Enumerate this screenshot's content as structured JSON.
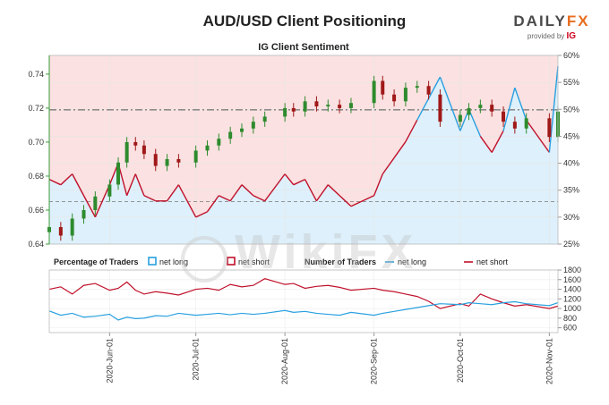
{
  "title": "AUD/USD Client Positioning",
  "logo": {
    "word_left": "DAILY",
    "word_right": "FX",
    "provided_by": "provided by",
    "provider": "IG"
  },
  "colors": {
    "candle_up": "#2e8b2e",
    "candle_down": "#a01818",
    "net_long": "#29a0e0",
    "net_short": "#c0102a",
    "long_fill": "#def0fb",
    "short_fill": "#fbe1e1",
    "price_axis": "#3a9a3a"
  },
  "chart_data": [
    {
      "type": "candlestick+line",
      "title": "IG Client Sentiment",
      "price_axis": {
        "side": "left",
        "ticks": [
          0.64,
          0.66,
          0.68,
          0.7,
          0.72,
          0.74
        ],
        "tick_labels": [
          "0.64",
          "0.66",
          "0.68",
          "0.70",
          "0.72",
          "0.74"
        ],
        "ylim": [
          0.64,
          0.751
        ]
      },
      "pct_axis": {
        "side": "right",
        "ticks": [
          25,
          30,
          35,
          40,
          45,
          50,
          55,
          60
        ],
        "tick_labels": [
          "25%",
          "30%",
          "35%",
          "40%",
          "45%",
          "50%",
          "55%",
          "60%"
        ],
        "ylim": [
          25,
          60
        ]
      },
      "reference_lines": {
        "price_dashdot": 0.719,
        "price_dashed": 0.665
      },
      "x_dates": [
        "2020-05-11",
        "2020-05-15",
        "2020-05-19",
        "2020-05-23",
        "2020-05-27",
        "2020-06-01",
        "2020-06-04",
        "2020-06-07",
        "2020-06-10",
        "2020-06-13",
        "2020-06-17",
        "2020-06-21",
        "2020-06-25",
        "2020-07-01",
        "2020-07-05",
        "2020-07-09",
        "2020-07-13",
        "2020-07-17",
        "2020-07-21",
        "2020-07-25",
        "2020-08-01",
        "2020-08-04",
        "2020-08-08",
        "2020-08-12",
        "2020-08-16",
        "2020-08-20",
        "2020-08-24",
        "2020-09-01",
        "2020-09-04",
        "2020-09-08",
        "2020-09-12",
        "2020-09-16",
        "2020-09-20",
        "2020-09-24",
        "2020-10-01",
        "2020-10-04",
        "2020-10-08",
        "2020-10-12",
        "2020-10-16",
        "2020-10-20",
        "2020-10-24",
        "2020-11-01",
        "2020-11-04"
      ],
      "price_close": [
        0.65,
        0.645,
        0.655,
        0.66,
        0.668,
        0.675,
        0.688,
        0.7,
        0.698,
        0.693,
        0.686,
        0.69,
        0.688,
        0.695,
        0.698,
        0.702,
        0.706,
        0.708,
        0.712,
        0.715,
        0.72,
        0.718,
        0.724,
        0.721,
        0.722,
        0.72,
        0.723,
        0.736,
        0.728,
        0.724,
        0.732,
        0.733,
        0.728,
        0.712,
        0.716,
        0.72,
        0.722,
        0.718,
        0.712,
        0.708,
        0.714,
        0.703,
        0.718
      ],
      "pct_net_long": [
        37,
        36,
        38,
        34,
        30,
        36,
        40,
        34,
        38,
        34,
        33,
        33,
        36,
        30,
        31,
        34,
        33,
        36,
        34,
        33,
        38,
        36,
        37,
        33,
        36,
        34,
        32,
        34,
        38,
        41,
        44,
        48,
        52,
        56,
        46,
        50,
        45,
        42,
        46,
        54,
        48,
        42,
        58
      ]
    },
    {
      "type": "line",
      "legend": {
        "pct_title": "Percentage of Traders",
        "pct_long": "net long",
        "pct_short": "net short",
        "num_title": "Number of Traders",
        "num_long": "net long",
        "num_short": "net short"
      },
      "count_axis": {
        "side": "right",
        "ticks": [
          600,
          800,
          1000,
          1200,
          1400,
          1600,
          1800
        ],
        "tick_labels": [
          "600",
          "800",
          "1000",
          "1200",
          "1400",
          "1600",
          "1800"
        ],
        "ylim": [
          500,
          1800
        ]
      },
      "x_tick_labels": [
        "2020-Jun-01",
        "2020-Jul-01",
        "2020-Aug-01",
        "2020-Sep-01",
        "2020-Oct-01",
        "2020-Nov-01"
      ],
      "x_tick_dates": [
        "2020-06-01",
        "2020-07-01",
        "2020-08-01",
        "2020-09-01",
        "2020-10-01",
        "2020-11-01"
      ],
      "x_range": [
        "2020-05-11",
        "2020-11-04"
      ],
      "net_long_traders": [
        950,
        860,
        900,
        820,
        840,
        880,
        760,
        820,
        790,
        800,
        850,
        840,
        900,
        860,
        880,
        900,
        870,
        900,
        880,
        900,
        960,
        920,
        940,
        900,
        880,
        860,
        920,
        860,
        900,
        940,
        980,
        1020,
        1060,
        1100,
        1080,
        1120,
        1100,
        1080,
        1120,
        1140,
        1100,
        1060,
        1120
      ],
      "net_short_traders": [
        1400,
        1450,
        1300,
        1480,
        1520,
        1380,
        1420,
        1550,
        1380,
        1300,
        1350,
        1320,
        1280,
        1400,
        1420,
        1380,
        1500,
        1450,
        1480,
        1620,
        1500,
        1520,
        1420,
        1460,
        1480,
        1440,
        1380,
        1420,
        1380,
        1350,
        1300,
        1250,
        1150,
        1000,
        1100,
        1050,
        1300,
        1200,
        1120,
        1050,
        1080,
        1000,
        1050
      ]
    }
  ],
  "watermark": "WikiFX"
}
